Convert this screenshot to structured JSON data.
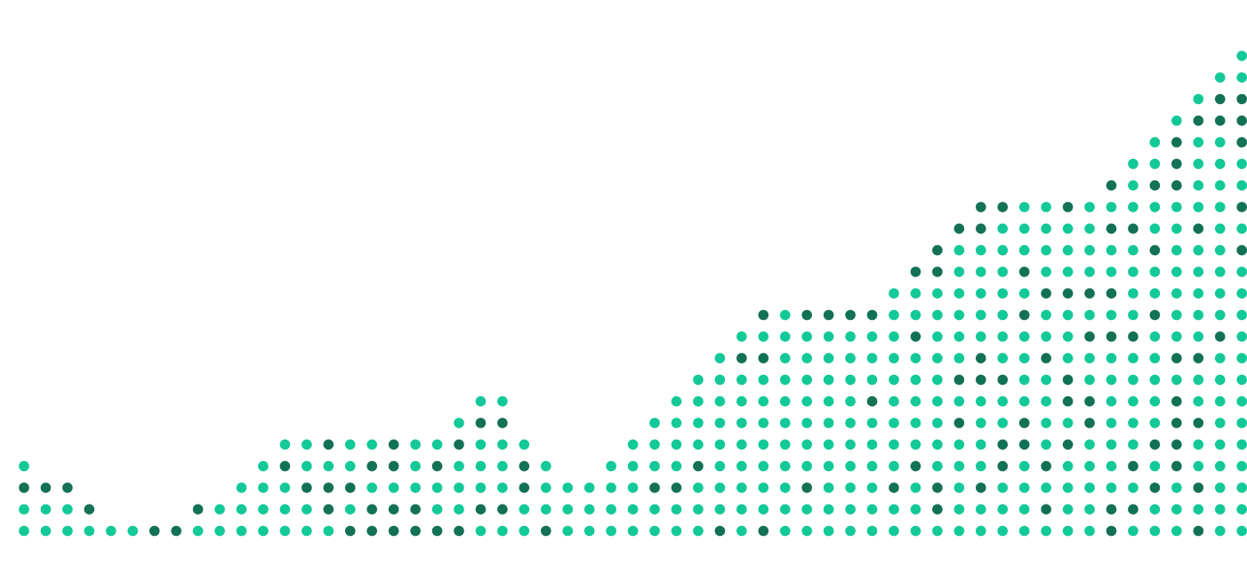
{
  "chart_data": {
    "type": "dot-column",
    "title": "",
    "xlabel": "",
    "ylabel": "",
    "grid": false,
    "legend": "none",
    "colors": {
      "primary": "#12c997",
      "accent": "#137155"
    },
    "ylim": [
      0,
      23
    ],
    "values": [
      4,
      3,
      3,
      2,
      1,
      1,
      1,
      1,
      2,
      2,
      3,
      4,
      5,
      5,
      5,
      5,
      5,
      5,
      5,
      5,
      6,
      7,
      7,
      5,
      4,
      3,
      3,
      4,
      5,
      6,
      7,
      8,
      9,
      10,
      11,
      11,
      11,
      11,
      11,
      11,
      12,
      13,
      14,
      15,
      16,
      16,
      16,
      16,
      16,
      16,
      17,
      18,
      19,
      20,
      21,
      22,
      23
    ],
    "series": [
      {
        "name": "primary",
        "counts": [
          3,
          2,
          2,
          1,
          1,
          1,
          0,
          0,
          1,
          2,
          3,
          4,
          4,
          4,
          2,
          3,
          2,
          1,
          3,
          3,
          4,
          5,
          5,
          3,
          3,
          3,
          3,
          4,
          5,
          5,
          6,
          7,
          8,
          9,
          8,
          11,
          9,
          10,
          10,
          9,
          11,
          10,
          10,
          12,
          11,
          12,
          12,
          12,
          11,
          12,
          11,
          14,
          14,
          12,
          15,
          19,
          18
        ]
      },
      {
        "name": "accent",
        "counts": [
          1,
          1,
          1,
          1,
          0,
          0,
          1,
          1,
          1,
          0,
          0,
          0,
          1,
          1,
          3,
          2,
          3,
          4,
          2,
          2,
          2,
          2,
          2,
          2,
          1,
          0,
          0,
          0,
          0,
          1,
          1,
          1,
          1,
          1,
          3,
          0,
          2,
          1,
          1,
          2,
          1,
          3,
          4,
          3,
          5,
          4,
          4,
          4,
          5,
          4,
          6,
          4,
          5,
          8,
          6,
          3,
          5
        ]
      }
    ]
  }
}
